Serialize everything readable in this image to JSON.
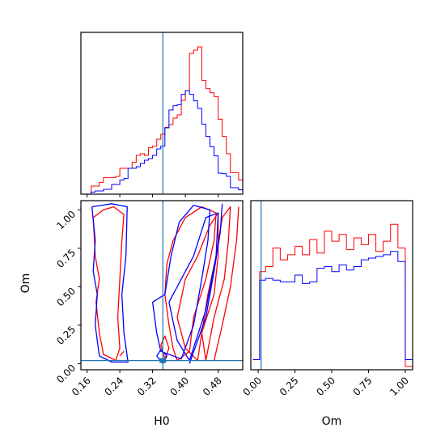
{
  "chart_data": {
    "type": "corner",
    "parameters": [
      "H0",
      "Om"
    ],
    "truth": {
      "H0": 0.345,
      "Om": 0.02
    },
    "colors": {
      "red": "#ff0000",
      "blue": "#0000ff",
      "truth": "#1f77b4"
    },
    "panels": [
      {
        "id": "hist-H0",
        "type": "step-histogram",
        "xlim": [
          0.145,
          0.54
        ],
        "x_ticks": [
          0.16,
          0.24,
          0.32,
          0.4,
          0.48
        ],
        "ylim": [
          0,
          300
        ],
        "series": [
          {
            "color": "red",
            "bins": [
              0.165,
              0.175,
              0.185,
              0.195,
              0.205,
              0.215,
              0.225,
              0.235,
              0.245,
              0.255,
              0.265,
              0.275,
              0.285,
              0.295,
              0.305,
              0.315,
              0.325,
              0.335,
              0.345,
              0.355,
              0.365,
              0.375,
              0.385,
              0.395,
              0.405,
              0.415,
              0.425,
              0.435,
              0.445,
              0.455,
              0.465,
              0.475,
              0.485,
              0.495,
              0.505,
              0.515,
              0.525,
              0.535
            ],
            "counts": [
              0,
              15,
              15,
              22,
              31,
              31,
              31,
              33,
              48,
              48,
              48,
              59,
              72,
              75,
              72,
              86,
              89,
              102,
              111,
              124,
              129,
              141,
              147,
              174,
              192,
              261,
              267,
              273,
              211,
              196,
              188,
              181,
              139,
              107,
              75,
              40,
              40,
              26
            ]
          },
          {
            "color": "blue",
            "bins": [
              0.165,
              0.175,
              0.185,
              0.195,
              0.205,
              0.215,
              0.225,
              0.235,
              0.245,
              0.255,
              0.265,
              0.275,
              0.285,
              0.295,
              0.305,
              0.315,
              0.325,
              0.335,
              0.345,
              0.355,
              0.365,
              0.375,
              0.385,
              0.395,
              0.405,
              0.415,
              0.425,
              0.435,
              0.445,
              0.455,
              0.465,
              0.475,
              0.485,
              0.495,
              0.505,
              0.515,
              0.525,
              0.535
            ],
            "counts": [
              0,
              4,
              6,
              6,
              9,
              9,
              18,
              18,
              26,
              29,
              48,
              48,
              51,
              57,
              63,
              66,
              72,
              84,
              89,
              123,
              156,
              164,
              166,
              185,
              192,
              185,
              173,
              159,
              130,
              107,
              88,
              71,
              39,
              38,
              33,
              12,
              12,
              8
            ]
          }
        ]
      },
      {
        "id": "hist-Om",
        "type": "step-histogram",
        "xlim": [
          -0.05,
          1.05
        ],
        "x_ticks": [
          0.0,
          0.25,
          0.5,
          0.75,
          1.0
        ],
        "x_tick_labels": [
          "0.00",
          "0.25",
          "0.50",
          "0.75",
          "1.00"
        ],
        "ylim": [
          0,
          1
        ],
        "series": [
          {
            "color": "red",
            "edges": [
              -0.035,
              0.01,
              0.05,
              0.1,
              0.15,
              0.2,
              0.25,
              0.3,
              0.35,
              0.4,
              0.45,
              0.5,
              0.55,
              0.6,
              0.65,
              0.7,
              0.75,
              0.8,
              0.85,
              0.9,
              0.95,
              1.0,
              1.05
            ],
            "counts": [
              0.06,
              0.58,
              0.61,
              0.72,
              0.65,
              0.68,
              0.73,
              0.68,
              0.77,
              0.69,
              0.82,
              0.76,
              0.8,
              0.71,
              0.78,
              0.74,
              0.8,
              0.7,
              0.76,
              0.86,
              0.72,
              0.02
            ]
          },
          {
            "color": "blue",
            "edges": [
              -0.035,
              0.01,
              0.05,
              0.1,
              0.15,
              0.2,
              0.25,
              0.3,
              0.35,
              0.4,
              0.45,
              0.5,
              0.55,
              0.6,
              0.65,
              0.7,
              0.75,
              0.8,
              0.85,
              0.9,
              0.95,
              1.0,
              1.05
            ],
            "counts": [
              0.06,
              0.53,
              0.54,
              0.53,
              0.52,
              0.52,
              0.56,
              0.51,
              0.52,
              0.6,
              0.61,
              0.58,
              0.62,
              0.59,
              0.61,
              0.65,
              0.66,
              0.67,
              0.68,
              0.7,
              0.64,
              0.06
            ]
          }
        ]
      },
      {
        "id": "contour-H0-Om",
        "type": "contour",
        "xlabel": "H0",
        "ylabel": "Om",
        "xlim": [
          0.145,
          0.54
        ],
        "ylim": [
          -0.04,
          1.06
        ],
        "x_ticks": [
          0.16,
          0.24,
          0.32,
          0.4,
          0.48
        ],
        "x_tick_labels": [
          "0.16",
          "0.24",
          "0.32",
          "0.40",
          "0.48"
        ],
        "y_ticks": [
          0.0,
          0.25,
          0.5,
          0.75,
          1.0
        ],
        "y_tick_labels": [
          "0.00",
          "0.25",
          "0.50",
          "0.75",
          "1.00"
        ],
        "series": [
          {
            "color": "red",
            "contours": [
              [
                [
                  0.175,
                  0.95
                ],
                [
                  0.18,
                  0.7
                ],
                [
                  0.19,
                  0.55
                ],
                [
                  0.182,
                  0.4
                ],
                [
                  0.19,
                  0.2
                ],
                [
                  0.2,
                  0.06
                ],
                [
                  0.23,
                  0.02
                ],
                [
                  0.24,
                  0.1
                ],
                [
                  0.235,
                  0.3
                ],
                [
                  0.24,
                  0.55
                ],
                [
                  0.245,
                  0.8
                ],
                [
                  0.25,
                  0.97
                ],
                [
                  0.225,
                  1.02
                ],
                [
                  0.2,
                  1.0
                ],
                [
                  0.175,
                  0.95
                ]
              ],
              [
                [
                  0.35,
                  0.45
                ],
                [
                  0.36,
                  0.25
                ],
                [
                  0.37,
                  0.1
                ],
                [
                  0.38,
                  0.02
                ],
                [
                  0.41,
                  0.08
                ],
                [
                  0.42,
                  0.3
                ],
                [
                  0.45,
                  0.55
                ],
                [
                  0.47,
                  0.8
                ],
                [
                  0.475,
                  0.98
                ],
                [
                  0.44,
                  1.02
                ],
                [
                  0.4,
                  0.95
                ],
                [
                  0.37,
                  0.8
                ],
                [
                  0.355,
                  0.65
                ],
                [
                  0.35,
                  0.45
                ]
              ],
              [
                [
                  0.38,
                  0.3
                ],
                [
                  0.4,
                  0.1
                ],
                [
                  0.43,
                  0.02
                ],
                [
                  0.44,
                  0.2
                ],
                [
                  0.47,
                  0.45
                ],
                [
                  0.48,
                  0.7
                ],
                [
                  0.48,
                  0.98
                ],
                [
                  0.46,
                  0.9
                ],
                [
                  0.43,
                  0.7
                ],
                [
                  0.4,
                  0.55
                ],
                [
                  0.38,
                  0.3
                ]
              ],
              [
                [
                  0.45,
                  0.02
                ],
                [
                  0.47,
                  0.3
                ],
                [
                  0.495,
                  0.55
                ],
                [
                  0.505,
                  0.8
                ],
                [
                  0.51,
                  1.02
                ],
                [
                  0.49,
                  0.95
                ],
                [
                  0.475,
                  0.7
                ],
                [
                  0.455,
                  0.45
                ],
                [
                  0.44,
                  0.2
                ],
                [
                  0.45,
                  0.02
                ]
              ],
              [
                [
                  0.47,
                  0.02
                ],
                [
                  0.49,
                  0.25
                ],
                [
                  0.51,
                  0.5
                ],
                [
                  0.525,
                  0.8
                ],
                [
                  0.53,
                  1.02
                ]
              ],
              [
                [
                  0.34,
                  0.12
                ],
                [
                  0.35,
                  0.03
                ],
                [
                  0.36,
                  0.1
                ],
                [
                  0.35,
                  0.18
                ],
                [
                  0.34,
                  0.12
                ]
              ],
              [
                [
                  0.24,
                  0.05
                ],
                [
                  0.25,
                  0.08
                ]
              ]
            ]
          },
          {
            "color": "blue",
            "contours": [
              [
                [
                  0.172,
                  1.02
                ],
                [
                  0.18,
                  0.8
                ],
                [
                  0.175,
                  0.6
                ],
                [
                  0.185,
                  0.45
                ],
                [
                  0.18,
                  0.25
                ],
                [
                  0.19,
                  0.05
                ],
                [
                  0.22,
                  0.01
                ],
                [
                  0.26,
                  0.01
                ],
                [
                  0.25,
                  0.2
                ],
                [
                  0.245,
                  0.45
                ],
                [
                  0.255,
                  0.7
                ],
                [
                  0.258,
                  1.02
                ],
                [
                  0.22,
                  1.04
                ],
                [
                  0.172,
                  1.02
                ]
              ],
              [
                [
                  0.32,
                  0.4
                ],
                [
                  0.33,
                  0.2
                ],
                [
                  0.34,
                  0.08
                ],
                [
                  0.39,
                  0.03
                ],
                [
                  0.42,
                  0.25
                ],
                [
                  0.44,
                  0.55
                ],
                [
                  0.455,
                  0.8
                ],
                [
                  0.46,
                  1.0
                ],
                [
                  0.42,
                  1.03
                ],
                [
                  0.385,
                  0.92
                ],
                [
                  0.365,
                  0.7
                ],
                [
                  0.35,
                  0.45
                ],
                [
                  0.32,
                  0.4
                ]
              ],
              [
                [
                  0.36,
                  0.4
                ],
                [
                  0.38,
                  0.15
                ],
                [
                  0.41,
                  0.02
                ],
                [
                  0.45,
                  0.35
                ],
                [
                  0.475,
                  0.7
                ],
                [
                  0.48,
                  0.98
                ],
                [
                  0.45,
                  0.95
                ],
                [
                  0.42,
                  0.7
                ],
                [
                  0.39,
                  0.55
                ],
                [
                  0.36,
                  0.4
                ]
              ],
              [
                [
                  0.41,
                  0.0
                ],
                [
                  0.45,
                  0.3
                ],
                [
                  0.47,
                  0.6
                ],
                [
                  0.485,
                  0.85
                ],
                [
                  0.49,
                  1.04
                ]
              ],
              [
                [
                  0.33,
                  0.05
                ],
                [
                  0.345,
                  0.0
                ],
                [
                  0.355,
                  0.05
                ],
                [
                  0.34,
                  0.09
                ],
                [
                  0.33,
                  0.05
                ]
              ]
            ]
          }
        ]
      }
    ]
  }
}
